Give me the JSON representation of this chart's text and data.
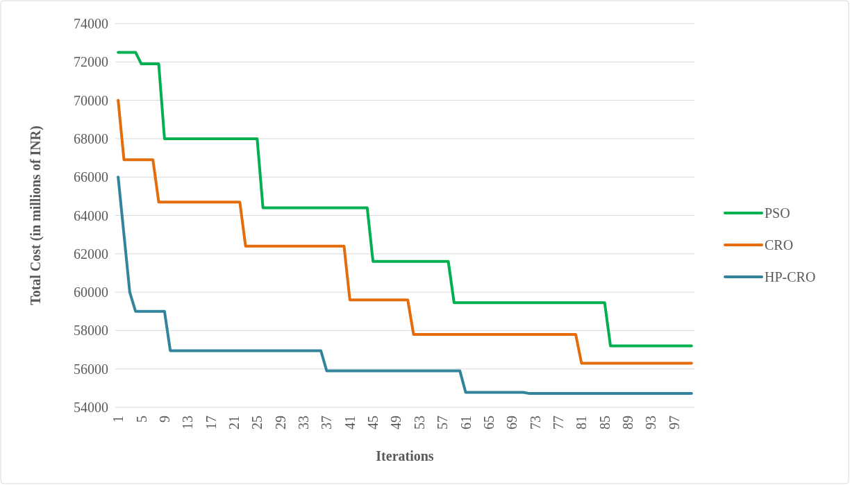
{
  "chart_data": {
    "type": "line",
    "xlabel": "Iterations",
    "ylabel": "Total Cost (in millions of INR)",
    "categories": [
      "1",
      null,
      null,
      null,
      "5",
      null,
      null,
      null,
      "9",
      null,
      null,
      null,
      "13",
      null,
      null,
      null,
      "17",
      null,
      null,
      null,
      "21",
      null,
      null,
      null,
      "25",
      null,
      null,
      null,
      "29",
      null,
      null,
      null,
      "33",
      null,
      null,
      null,
      "37",
      null,
      null,
      null,
      "41",
      null,
      null,
      null,
      "45",
      null,
      null,
      null,
      "49",
      null,
      null,
      null,
      "53",
      null,
      null,
      null,
      "57",
      null,
      null,
      null,
      "61",
      null,
      null,
      null,
      "65",
      null,
      null,
      null,
      "69",
      null,
      null,
      null,
      "73",
      null,
      null,
      null,
      "77",
      null,
      null,
      null,
      "81",
      null,
      null,
      null,
      "85",
      null,
      null,
      null,
      "89",
      null,
      null,
      null,
      "93",
      null,
      null,
      null,
      "97",
      null,
      null,
      null
    ],
    "series": [
      {
        "name": "PSO",
        "color": "#00b050",
        "values": [
          72500,
          72500,
          72500,
          72500,
          71900,
          71900,
          71900,
          71900,
          68000,
          68000,
          68000,
          68000,
          68000,
          68000,
          68000,
          68000,
          68000,
          68000,
          68000,
          68000,
          68000,
          68000,
          68000,
          68000,
          68000,
          64400,
          64400,
          64400,
          64400,
          64400,
          64400,
          64400,
          64400,
          64400,
          64400,
          64400,
          64400,
          64400,
          64400,
          64400,
          64400,
          64400,
          64400,
          64400,
          61600,
          61600,
          61600,
          61600,
          61600,
          61600,
          61600,
          61600,
          61600,
          61600,
          61600,
          61600,
          61600,
          61600,
          59450,
          59450,
          59450,
          59450,
          59450,
          59450,
          59450,
          59450,
          59450,
          59450,
          59450,
          59450,
          59450,
          59450,
          59450,
          59450,
          59450,
          59450,
          59450,
          59450,
          59450,
          59450,
          59450,
          59450,
          59450,
          59450,
          59450,
          57200,
          57200,
          57200,
          57200,
          57200,
          57200,
          57200,
          57200,
          57200,
          57200,
          57200,
          57200,
          57200,
          57200,
          57200
        ]
      },
      {
        "name": "CRO",
        "color": "#e46c0a",
        "values": [
          70000,
          66900,
          66900,
          66900,
          66900,
          66900,
          66900,
          64700,
          64700,
          64700,
          64700,
          64700,
          64700,
          64700,
          64700,
          64700,
          64700,
          64700,
          64700,
          64700,
          64700,
          64700,
          62400,
          62400,
          62400,
          62400,
          62400,
          62400,
          62400,
          62400,
          62400,
          62400,
          62400,
          62400,
          62400,
          62400,
          62400,
          62400,
          62400,
          62400,
          59600,
          59600,
          59600,
          59600,
          59600,
          59600,
          59600,
          59600,
          59600,
          59600,
          59600,
          57800,
          57800,
          57800,
          57800,
          57800,
          57800,
          57800,
          57800,
          57800,
          57800,
          57800,
          57800,
          57800,
          57800,
          57800,
          57800,
          57800,
          57800,
          57800,
          57800,
          57800,
          57800,
          57800,
          57800,
          57800,
          57800,
          57800,
          57800,
          57800,
          56300,
          56300,
          56300,
          56300,
          56300,
          56300,
          56300,
          56300,
          56300,
          56300,
          56300,
          56300,
          56300,
          56300,
          56300,
          56300,
          56300,
          56300,
          56300,
          56300
        ]
      },
      {
        "name": "HP-CRO",
        "color": "#31849b",
        "values": [
          66000,
          63000,
          60000,
          59000,
          59000,
          59000,
          59000,
          59000,
          59000,
          56950,
          56950,
          56950,
          56950,
          56950,
          56950,
          56950,
          56950,
          56950,
          56950,
          56950,
          56950,
          56950,
          56950,
          56950,
          56950,
          56950,
          56950,
          56950,
          56950,
          56950,
          56950,
          56950,
          56950,
          56950,
          56950,
          56950,
          55900,
          55900,
          55900,
          55900,
          55900,
          55900,
          55900,
          55900,
          55900,
          55900,
          55900,
          55900,
          55900,
          55900,
          55900,
          55900,
          55900,
          55900,
          55900,
          55900,
          55900,
          55900,
          55900,
          55900,
          54780,
          54780,
          54780,
          54780,
          54780,
          54780,
          54780,
          54780,
          54780,
          54780,
          54780,
          54720,
          54720,
          54720,
          54720,
          54720,
          54720,
          54720,
          54720,
          54720,
          54720,
          54720,
          54720,
          54720,
          54720,
          54720,
          54720,
          54720,
          54720,
          54720,
          54720,
          54720,
          54720,
          54720,
          54720,
          54720,
          54720,
          54720,
          54720,
          54720
        ]
      }
    ],
    "ylim": [
      54000,
      74000
    ],
    "yticks": [
      54000,
      56000,
      58000,
      60000,
      62000,
      64000,
      66000,
      68000,
      70000,
      72000,
      74000
    ],
    "grid": "y",
    "legend": "right",
    "marker": "none",
    "line_style": "solid"
  }
}
